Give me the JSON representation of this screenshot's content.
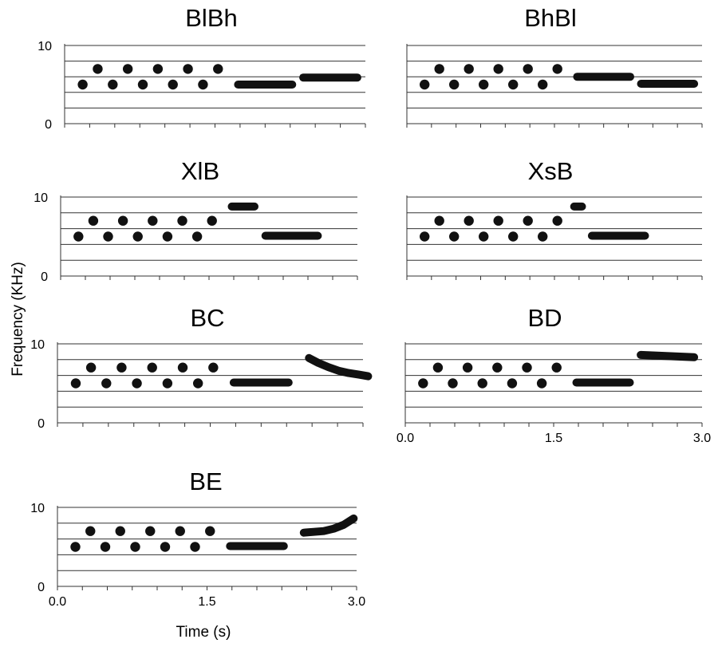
{
  "figure": {
    "ylabel": "Frequency (KHz)",
    "xlabel": "Time (s)"
  },
  "chart_data": [
    {
      "type": "scatter",
      "title": "BlBh",
      "ylim": [
        0,
        10
      ],
      "yticks": [
        "0",
        "10"
      ],
      "xlim": [
        0,
        3
      ],
      "xticks": [],
      "dots": [
        [
          0.18,
          5
        ],
        [
          0.33,
          7
        ],
        [
          0.48,
          5
        ],
        [
          0.63,
          7
        ],
        [
          0.78,
          5
        ],
        [
          0.93,
          7
        ],
        [
          1.08,
          5
        ],
        [
          1.23,
          7
        ],
        [
          1.38,
          5
        ],
        [
          1.53,
          7
        ]
      ],
      "tones": [
        [
          [
            1.73,
            5
          ],
          [
            2.27,
            5
          ]
        ],
        [
          [
            2.38,
            5.9
          ],
          [
            2.92,
            5.9
          ]
        ]
      ]
    },
    {
      "type": "scatter",
      "title": "BhBl",
      "ylim": [
        0,
        10
      ],
      "yticks": [],
      "xlim": [
        0,
        3
      ],
      "xticks": [],
      "dots": [
        [
          0.18,
          5
        ],
        [
          0.33,
          7
        ],
        [
          0.48,
          5
        ],
        [
          0.63,
          7
        ],
        [
          0.78,
          5
        ],
        [
          0.93,
          7
        ],
        [
          1.08,
          5
        ],
        [
          1.23,
          7
        ],
        [
          1.38,
          5
        ],
        [
          1.53,
          7
        ]
      ],
      "tones": [
        [
          [
            1.73,
            6
          ],
          [
            2.27,
            6
          ]
        ],
        [
          [
            2.38,
            5.1
          ],
          [
            2.92,
            5.1
          ]
        ]
      ]
    },
    {
      "type": "scatter",
      "title": "XlB",
      "ylim": [
        0,
        10
      ],
      "yticks": [
        "0",
        "10"
      ],
      "xlim": [
        0,
        3
      ],
      "xticks": [],
      "dots": [
        [
          0.18,
          5
        ],
        [
          0.33,
          7
        ],
        [
          0.48,
          5
        ],
        [
          0.63,
          7
        ],
        [
          0.78,
          5
        ],
        [
          0.93,
          7
        ],
        [
          1.08,
          5
        ],
        [
          1.23,
          7
        ],
        [
          1.38,
          5
        ],
        [
          1.53,
          7
        ]
      ],
      "tones": [
        [
          [
            1.73,
            8.8
          ],
          [
            1.96,
            8.8
          ]
        ],
        [
          [
            2.07,
            5.1
          ],
          [
            2.6,
            5.1
          ]
        ]
      ]
    },
    {
      "type": "scatter",
      "title": "XsB",
      "ylim": [
        0,
        10
      ],
      "yticks": [],
      "xlim": [
        0,
        3
      ],
      "xticks": [],
      "dots": [
        [
          0.18,
          5
        ],
        [
          0.33,
          7
        ],
        [
          0.48,
          5
        ],
        [
          0.63,
          7
        ],
        [
          0.78,
          5
        ],
        [
          0.93,
          7
        ],
        [
          1.08,
          5
        ],
        [
          1.23,
          7
        ],
        [
          1.38,
          5
        ],
        [
          1.53,
          7
        ]
      ],
      "tones": [
        [
          [
            1.7,
            8.8
          ],
          [
            1.78,
            8.8
          ]
        ],
        [
          [
            1.88,
            5.1
          ],
          [
            2.42,
            5.1
          ]
        ]
      ]
    },
    {
      "type": "scatter",
      "title": "BC",
      "ylim": [
        0,
        10
      ],
      "yticks": [
        "0",
        "10"
      ],
      "xlim": [
        0,
        3
      ],
      "xticks": [],
      "dots": [
        [
          0.18,
          5
        ],
        [
          0.33,
          7
        ],
        [
          0.48,
          5
        ],
        [
          0.63,
          7
        ],
        [
          0.78,
          5
        ],
        [
          0.93,
          7
        ],
        [
          1.08,
          5
        ],
        [
          1.23,
          7
        ],
        [
          1.38,
          5
        ],
        [
          1.53,
          7
        ]
      ],
      "tones": [
        [
          [
            1.73,
            5.1
          ],
          [
            2.27,
            5.1
          ]
        ],
        [
          [
            2.47,
            8.2
          ],
          [
            2.56,
            7.6
          ],
          [
            2.66,
            7.05
          ],
          [
            2.76,
            6.6
          ],
          [
            2.86,
            6.3
          ],
          [
            2.96,
            6.1
          ],
          [
            3.05,
            5.9
          ]
        ]
      ]
    },
    {
      "type": "scatter",
      "title": "BD",
      "ylim": [
        0,
        10
      ],
      "yticks": [],
      "xlim": [
        0,
        3
      ],
      "xticks": [
        "0.0",
        "1.5",
        "3.0"
      ],
      "dots": [
        [
          0.18,
          5
        ],
        [
          0.33,
          7
        ],
        [
          0.48,
          5
        ],
        [
          0.63,
          7
        ],
        [
          0.78,
          5
        ],
        [
          0.93,
          7
        ],
        [
          1.08,
          5
        ],
        [
          1.23,
          7
        ],
        [
          1.38,
          5
        ],
        [
          1.53,
          7
        ]
      ],
      "tones": [
        [
          [
            1.73,
            5.1
          ],
          [
            2.27,
            5.1
          ]
        ],
        [
          [
            2.38,
            8.6
          ],
          [
            2.92,
            8.3
          ]
        ]
      ]
    },
    {
      "type": "scatter",
      "title": "BE",
      "ylim": [
        0,
        10
      ],
      "yticks": [
        "0",
        "10"
      ],
      "xlim": [
        0,
        3
      ],
      "xticks": [
        "0.0",
        "1.5",
        "3.0"
      ],
      "dots": [
        [
          0.18,
          5
        ],
        [
          0.33,
          7
        ],
        [
          0.48,
          5
        ],
        [
          0.63,
          7
        ],
        [
          0.78,
          5
        ],
        [
          0.93,
          7
        ],
        [
          1.08,
          5
        ],
        [
          1.23,
          7
        ],
        [
          1.38,
          5
        ],
        [
          1.53,
          7
        ]
      ],
      "tones": [
        [
          [
            1.73,
            5.1
          ],
          [
            2.27,
            5.1
          ]
        ],
        [
          [
            2.47,
            6.8
          ],
          [
            2.57,
            6.9
          ],
          [
            2.67,
            7.0
          ],
          [
            2.77,
            7.3
          ],
          [
            2.87,
            7.8
          ],
          [
            2.97,
            8.6
          ]
        ]
      ]
    }
  ]
}
